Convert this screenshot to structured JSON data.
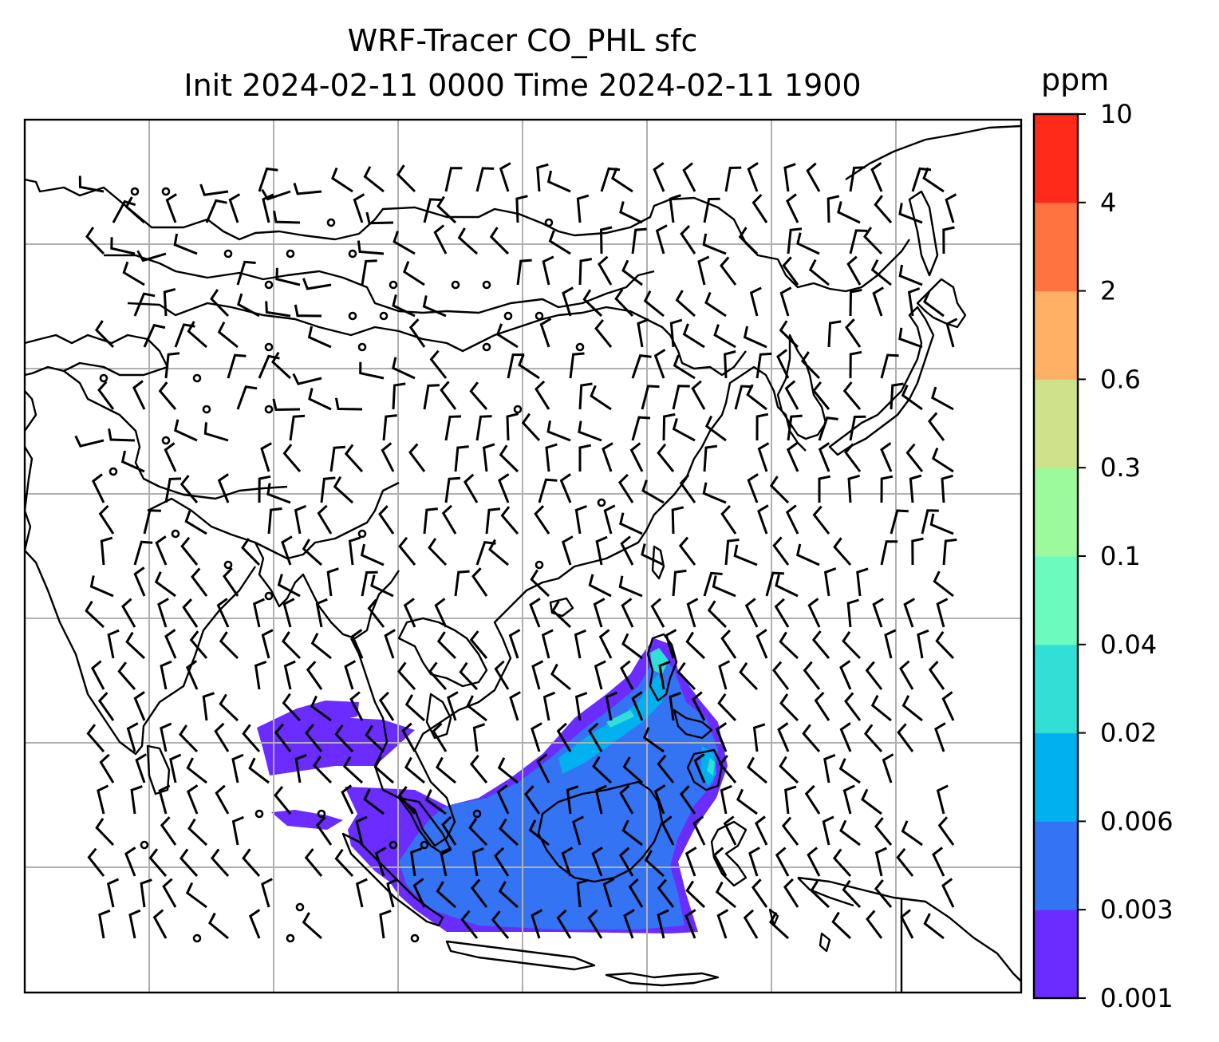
{
  "title": {
    "line1": "WRF-Tracer CO_PHL sfc",
    "line2": "Init 2024-02-11 0000 Time 2024-02-11 1900"
  },
  "colorbar": {
    "unit": "ppm",
    "levels": [
      "0.001",
      "0.003",
      "0.006",
      "0.02",
      "0.04",
      "0.1",
      "0.3",
      "0.6",
      "2",
      "4",
      "10"
    ],
    "colors": [
      "#6a2cff",
      "#3573f5",
      "#00b0ef",
      "#31dfd6",
      "#6bfbbf",
      "#9cf99c",
      "#cfe28a",
      "#ffb064",
      "#ff7340",
      "#ff2a1a"
    ]
  },
  "map": {
    "map_frame_color": "#000000",
    "gridline_color": "#b0b0b0",
    "coastline_color": "#000000",
    "wind_barb_color": "#000000"
  }
}
